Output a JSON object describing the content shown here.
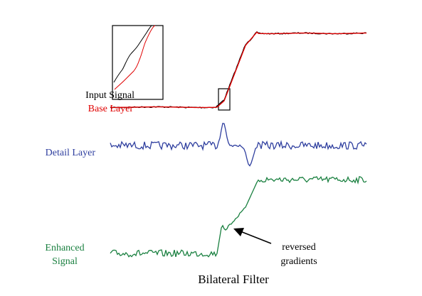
{
  "labels": {
    "input_signal": "Input Signal",
    "base_layer": "Base Layer",
    "detail_layer": "Detail Layer",
    "enhanced_line1": "Enhanced",
    "enhanced_line2": "Signal",
    "annotation_line1": "reversed",
    "annotation_line2": "gradients",
    "caption": "Bilateral Filter"
  },
  "colors": {
    "input": "#000000",
    "base": "#e00000",
    "detail": "#2f3f9f",
    "enhanced": "#1a8040",
    "text": "#000000",
    "background": "#ffffff"
  }
}
